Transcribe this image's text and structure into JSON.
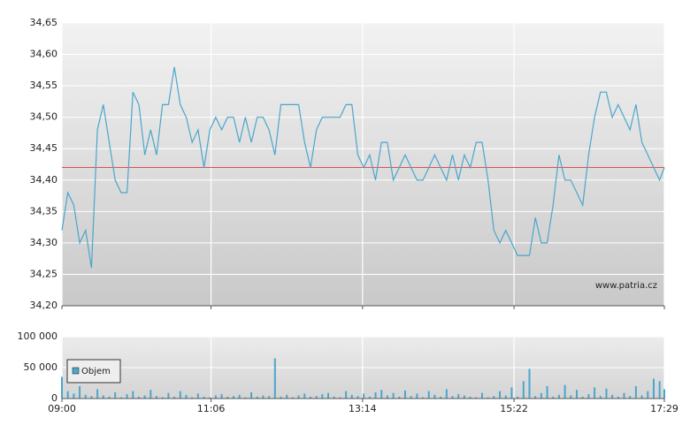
{
  "chart_data": [
    {
      "type": "line",
      "watermark": "www.patria.cz",
      "x": [
        "09:00",
        "09:05",
        "09:10",
        "09:15",
        "09:20",
        "09:25",
        "09:30",
        "09:35",
        "09:40",
        "09:45",
        "09:50",
        "09:55",
        "10:00",
        "10:05",
        "10:10",
        "10:15",
        "10:20",
        "10:25",
        "10:30",
        "10:35",
        "10:40",
        "10:45",
        "10:50",
        "10:55",
        "11:00",
        "11:05",
        "11:10",
        "11:15",
        "11:20",
        "11:25",
        "11:30",
        "11:35",
        "11:40",
        "11:45",
        "11:50",
        "11:55",
        "12:00",
        "12:05",
        "12:10",
        "12:15",
        "12:20",
        "12:25",
        "12:30",
        "12:35",
        "12:40",
        "12:45",
        "12:50",
        "12:55",
        "13:00",
        "13:05",
        "13:10",
        "13:15",
        "13:20",
        "13:25",
        "13:30",
        "13:35",
        "13:40",
        "13:45",
        "13:50",
        "13:55",
        "14:00",
        "14:05",
        "14:10",
        "14:15",
        "14:20",
        "14:25",
        "14:30",
        "14:35",
        "14:40",
        "14:45",
        "14:50",
        "14:55",
        "15:00",
        "15:05",
        "15:10",
        "15:15",
        "15:20",
        "15:25",
        "15:30",
        "15:35",
        "15:40",
        "15:45",
        "15:50",
        "15:55",
        "16:00",
        "16:05",
        "16:10",
        "16:15",
        "16:20",
        "16:25",
        "16:30",
        "16:35",
        "16:40",
        "16:45",
        "16:50",
        "16:55",
        "17:00",
        "17:05",
        "17:10",
        "17:15",
        "17:20",
        "17:25",
        "17:29"
      ],
      "series": [
        {
          "color": "#4aa6cc",
          "values": [
            34.32,
            34.38,
            34.36,
            34.3,
            34.32,
            34.26,
            34.48,
            34.52,
            34.46,
            34.4,
            34.38,
            34.38,
            34.54,
            34.52,
            34.44,
            34.48,
            34.44,
            34.52,
            34.52,
            34.58,
            34.52,
            34.5,
            34.46,
            34.48,
            34.42,
            34.48,
            34.5,
            34.48,
            34.5,
            34.5,
            34.46,
            34.5,
            34.46,
            34.5,
            34.5,
            34.48,
            34.44,
            34.52,
            34.52,
            34.52,
            34.52,
            34.46,
            34.42,
            34.48,
            34.5,
            34.5,
            34.5,
            34.5,
            34.52,
            34.52,
            34.44,
            34.42,
            34.44,
            34.4,
            34.46,
            34.46,
            34.4,
            34.42,
            34.44,
            34.42,
            34.4,
            34.4,
            34.42,
            34.44,
            34.42,
            34.4,
            34.44,
            34.4,
            34.44,
            34.42,
            34.46,
            34.46,
            34.4,
            34.32,
            34.3,
            34.32,
            34.3,
            34.28,
            34.28,
            34.28,
            34.34,
            34.3,
            34.3,
            34.36,
            34.44,
            34.4,
            34.4,
            34.38,
            34.36,
            34.44,
            34.5,
            34.54,
            34.54,
            34.5,
            34.52,
            34.5,
            34.48,
            34.52,
            34.46,
            34.44,
            34.42,
            34.4,
            34.42
          ]
        }
      ],
      "reference_line": {
        "value": 34.42,
        "color": "#e05050"
      },
      "xlim": [
        "09:00",
        "17:29"
      ],
      "ylim": [
        34.2,
        34.65
      ],
      "yticks": [
        {
          "value": 34.2,
          "label": "34,20"
        },
        {
          "value": 34.25,
          "label": "34,25"
        },
        {
          "value": 34.3,
          "label": "34,30"
        },
        {
          "value": 34.35,
          "label": "34,35"
        },
        {
          "value": 34.4,
          "label": "34,40"
        },
        {
          "value": 34.45,
          "label": "34,45"
        },
        {
          "value": 34.5,
          "label": "34,50"
        },
        {
          "value": 34.55,
          "label": "34,55"
        },
        {
          "value": 34.6,
          "label": "34,60"
        },
        {
          "value": 34.65,
          "label": "34,65"
        }
      ],
      "grid": true
    },
    {
      "type": "bar",
      "x": [
        "09:00",
        "09:05",
        "09:10",
        "09:15",
        "09:20",
        "09:25",
        "09:30",
        "09:35",
        "09:40",
        "09:45",
        "09:50",
        "09:55",
        "10:00",
        "10:05",
        "10:10",
        "10:15",
        "10:20",
        "10:25",
        "10:30",
        "10:35",
        "10:40",
        "10:45",
        "10:50",
        "10:55",
        "11:00",
        "11:05",
        "11:10",
        "11:15",
        "11:20",
        "11:25",
        "11:30",
        "11:35",
        "11:40",
        "11:45",
        "11:50",
        "11:55",
        "12:00",
        "12:05",
        "12:10",
        "12:15",
        "12:20",
        "12:25",
        "12:30",
        "12:35",
        "12:40",
        "12:45",
        "12:50",
        "12:55",
        "13:00",
        "13:05",
        "13:10",
        "13:15",
        "13:20",
        "13:25",
        "13:30",
        "13:35",
        "13:40",
        "13:45",
        "13:50",
        "13:55",
        "14:00",
        "14:05",
        "14:10",
        "14:15",
        "14:20",
        "14:25",
        "14:30",
        "14:35",
        "14:40",
        "14:45",
        "14:50",
        "14:55",
        "15:00",
        "15:05",
        "15:10",
        "15:15",
        "15:20",
        "15:25",
        "15:30",
        "15:35",
        "15:40",
        "15:45",
        "15:50",
        "15:55",
        "16:00",
        "16:05",
        "16:10",
        "16:15",
        "16:20",
        "16:25",
        "16:30",
        "16:35",
        "16:40",
        "16:45",
        "16:50",
        "16:55",
        "17:00",
        "17:05",
        "17:10",
        "17:15",
        "17:20",
        "17:25",
        "17:29"
      ],
      "series": [
        {
          "name": "Objem",
          "color": "#4aa6cc",
          "values": [
            35000,
            12000,
            8000,
            20000,
            6000,
            4000,
            15000,
            5000,
            3000,
            10000,
            2000,
            7000,
            12000,
            3000,
            5000,
            14000,
            4000,
            2000,
            9000,
            3000,
            12000,
            6000,
            2000,
            8000,
            3000,
            2000,
            5000,
            7000,
            3000,
            4000,
            6000,
            2000,
            10000,
            3000,
            5000,
            4000,
            65000,
            3000,
            6000,
            2000,
            5000,
            8000,
            3000,
            4000,
            7000,
            9000,
            3000,
            2000,
            12000,
            6000,
            4000,
            8000,
            3000,
            10000,
            14000,
            5000,
            9000,
            3000,
            13000,
            4000,
            8000,
            2000,
            12000,
            6000,
            3000,
            15000,
            4000,
            7000,
            5000,
            3000,
            2000,
            9000,
            2000,
            4000,
            12000,
            5000,
            18000,
            3000,
            28000,
            48000,
            4000,
            9000,
            20000,
            3000,
            6000,
            22000,
            5000,
            14000,
            3000,
            7000,
            18000,
            4000,
            16000,
            6000,
            3000,
            9000,
            4000,
            20000,
            5000,
            12000,
            32000,
            28000,
            15000
          ]
        }
      ],
      "xlim": [
        "09:00",
        "17:29"
      ],
      "xticks": [
        "09:00",
        "11:06",
        "13:14",
        "15:22",
        "17:29"
      ],
      "ylim": [
        0,
        100000
      ],
      "yticks": [
        0,
        {
          "value": 50000,
          "label": "50 000"
        },
        {
          "value": 100000,
          "label": "100 000"
        }
      ],
      "grid": true,
      "legend": "upper-left"
    }
  ]
}
